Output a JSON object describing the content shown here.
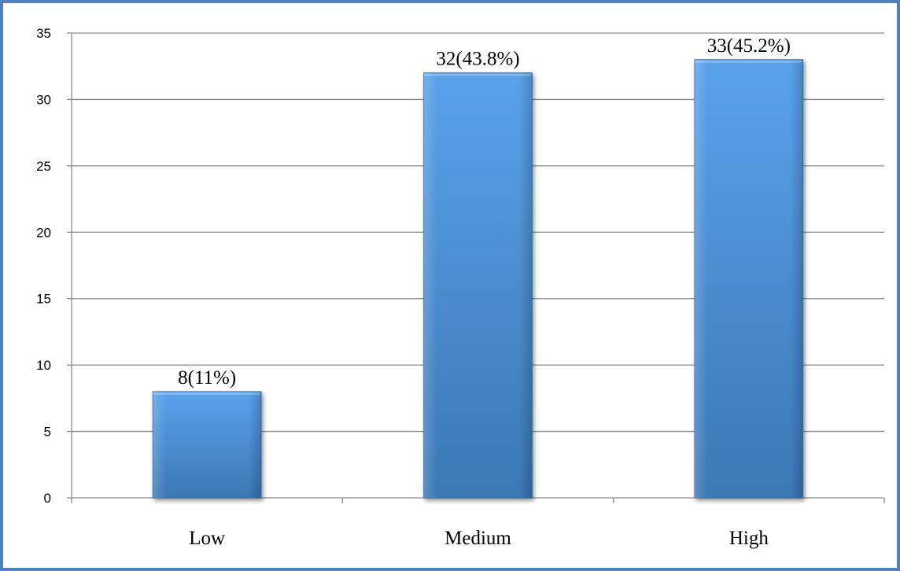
{
  "chart_data": {
    "type": "bar",
    "categories": [
      "Low",
      "Medium",
      "High"
    ],
    "values": [
      8,
      32,
      33
    ],
    "data_labels": [
      "8(11%)",
      "32(43.8%)",
      "33(45.2%)"
    ],
    "title": "",
    "xlabel": "",
    "ylabel": "",
    "ylim": [
      0,
      35
    ],
    "yticks": [
      0,
      5,
      10,
      15,
      20,
      25,
      30,
      35
    ],
    "ytick_labels": [
      "0",
      "5",
      "10",
      "15",
      "20",
      "25",
      "30",
      "35"
    ],
    "grid": true,
    "legend": "none",
    "bar_color": "#4a8fd6",
    "frame_color": "#4f81bd",
    "grid_color": "#8c8c8c"
  }
}
